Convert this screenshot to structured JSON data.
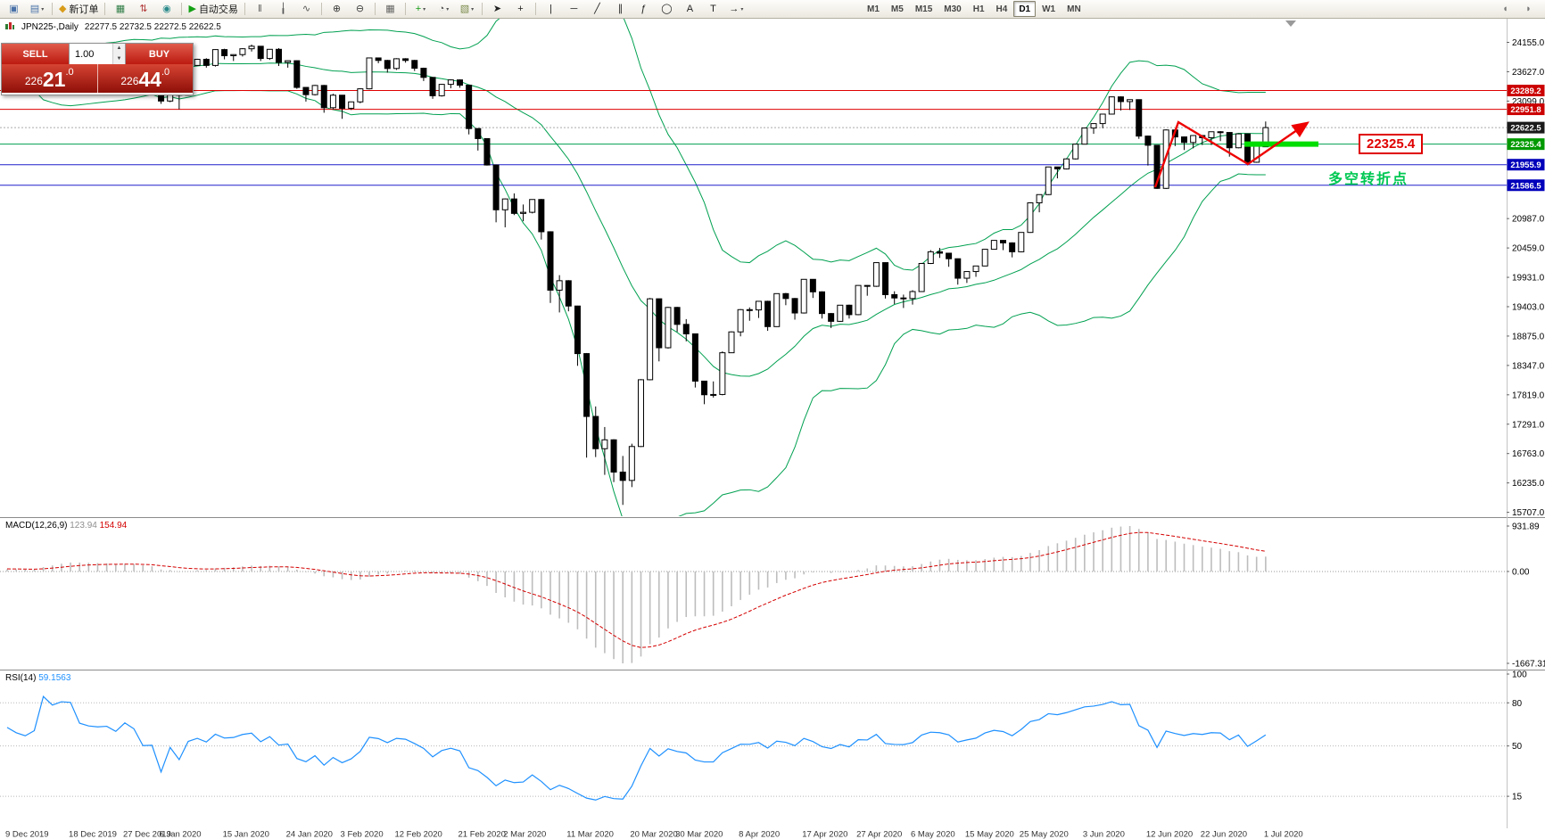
{
  "toolbar": {
    "items": [
      {
        "name": "new-chart-icon",
        "glyph": "▣",
        "color": "#4a72a8"
      },
      {
        "name": "chart-profiles-icon",
        "glyph": "▤",
        "color": "#4a72a8",
        "caret": true
      },
      {
        "type": "sep"
      },
      {
        "name": "new-order-button",
        "glyph": "◆",
        "color": "#d89c1a",
        "label": "新订单"
      },
      {
        "type": "sep"
      },
      {
        "name": "market-watch-icon",
        "glyph": "▦",
        "color": "#2f7d46"
      },
      {
        "name": "data-history-icon",
        "glyph": "⇅",
        "color": "#b23a3a"
      },
      {
        "name": "alerts-icon",
        "glyph": "◉",
        "color": "#2a8a8a"
      },
      {
        "type": "sep"
      },
      {
        "name": "autotrading-button",
        "glyph": "▶",
        "color": "#14a014",
        "label": "自动交易"
      },
      {
        "type": "sep"
      },
      {
        "name": "bar-chart-icon",
        "glyph": "ǁ",
        "color": "#555555"
      },
      {
        "name": "candlestick-chart-icon",
        "glyph": "╽",
        "color": "#555555"
      },
      {
        "name": "line-chart-icon",
        "glyph": "∿",
        "color": "#555555"
      },
      {
        "type": "sep"
      },
      {
        "name": "zoom-in-icon",
        "glyph": "⊕",
        "color": "#3a3a3a"
      },
      {
        "name": "zoom-out-icon",
        "glyph": "⊖",
        "color": "#3a3a3a"
      },
      {
        "type": "sep"
      },
      {
        "name": "tile-windows-icon",
        "glyph": "▦",
        "color": "#666666"
      },
      {
        "type": "sep"
      },
      {
        "name": "indicators-icon",
        "glyph": "+",
        "color": "#149c14",
        "caret": true
      },
      {
        "name": "periods-icon",
        "glyph": "◔",
        "color": "#555555",
        "caret": true
      },
      {
        "name": "templates-icon",
        "glyph": "▧",
        "color": "#7a8a4a",
        "caret": true
      },
      {
        "type": "sep"
      },
      {
        "name": "cursor-icon",
        "glyph": "➤",
        "color": "#222222"
      },
      {
        "name": "crosshair-icon",
        "glyph": "+",
        "color": "#222222"
      },
      {
        "type": "sep"
      },
      {
        "name": "vertical-line-icon",
        "glyph": "|",
        "color": "#222222"
      },
      {
        "name": "horizontal-line-icon",
        "glyph": "─",
        "color": "#222222"
      },
      {
        "name": "trendline-icon",
        "glyph": "╱",
        "color": "#222222"
      },
      {
        "name": "channel-icon",
        "glyph": "∥",
        "color": "#222222"
      },
      {
        "name": "fibonacci-icon",
        "glyph": "ƒ",
        "color": "#222222"
      },
      {
        "name": "shapes-icon",
        "glyph": "◯",
        "color": "#222222"
      },
      {
        "name": "text-icon",
        "glyph": "A",
        "color": "#222222"
      },
      {
        "name": "label-icon",
        "glyph": "T",
        "color": "#222222"
      },
      {
        "name": "arrows-icon",
        "glyph": "→",
        "color": "#222222",
        "caret": true
      }
    ],
    "right_items": [
      {
        "name": "toolbar-overflow-left-icon",
        "glyph": "◖",
        "color": "#777777"
      },
      {
        "name": "toolbar-overflow-right-icon",
        "glyph": "◗",
        "color": "#777777"
      }
    ],
    "timeframes": [
      "M1",
      "M5",
      "M15",
      "M30",
      "H1",
      "H4",
      "D1",
      "W1",
      "MN"
    ],
    "active_timeframe": "D1"
  },
  "quote_panel": {
    "sell_label": "SELL",
    "buy_label": "BUY",
    "volume": "1.00",
    "sell_price": "22621.0",
    "buy_price": "22644.0",
    "sell_prefix": "226",
    "sell_big": "21",
    "sell_suffix": ".0",
    "buy_prefix": "226",
    "buy_big": "44",
    "buy_suffix": ".0"
  },
  "chart_header": {
    "symbol_period": "JPN225-,Daily",
    "ohlc": "22277.5 22732.5 22272.5 22622.5"
  },
  "chart_data": {
    "type": "candlestick",
    "symbol": "JPN225-",
    "period": "Daily",
    "current_ohlc": {
      "open": 22277.5,
      "high": 22732.5,
      "low": 22272.5,
      "close": 22622.5
    },
    "y_axis_ticks": [
      24155,
      23627,
      23099,
      20987,
      20459,
      19931,
      19403,
      18875,
      18347,
      17819,
      17291,
      16763,
      16235,
      15707
    ],
    "x_labels": [
      {
        "text": "9 Dec 2019",
        "i": 0
      },
      {
        "text": "18 Dec 2019",
        "i": 7
      },
      {
        "text": "27 Dec 2019",
        "i": 13
      },
      {
        "text": "6 Jan 2020",
        "i": 17
      },
      {
        "text": "15 Jan 2020",
        "i": 24
      },
      {
        "text": "24 Jan 2020",
        "i": 31
      },
      {
        "text": "3 Feb 2020",
        "i": 37
      },
      {
        "text": "12 Feb 2020",
        "i": 43
      },
      {
        "text": "21 Feb 2020",
        "i": 50
      },
      {
        "text": "2 Mar 2020",
        "i": 55
      },
      {
        "text": "11 Mar 2020",
        "i": 62
      },
      {
        "text": "20 Mar 2020",
        "i": 69
      },
      {
        "text": "30 Mar 2020",
        "i": 74
      },
      {
        "text": "8 Apr 2020",
        "i": 81
      },
      {
        "text": "17 Apr 2020",
        "i": 88
      },
      {
        "text": "27 Apr 2020",
        "i": 94
      },
      {
        "text": "6 May 2020",
        "i": 100
      },
      {
        "text": "15 May 2020",
        "i": 106
      },
      {
        "text": "25 May 2020",
        "i": 112
      },
      {
        "text": "3 Jun 2020",
        "i": 119
      },
      {
        "text": "12 Jun 2020",
        "i": 126
      },
      {
        "text": "22 Jun 2020",
        "i": 132
      },
      {
        "text": "1 Jul 2020",
        "i": 139
      }
    ],
    "price_lines": [
      {
        "price": 23289.2,
        "label": "23289.2",
        "color": "#e00000",
        "tag": "#cc0000"
      },
      {
        "price": 22951.8,
        "label": "22951.8",
        "color": "#e00000",
        "tag": "#cc0000"
      },
      {
        "price": 22622.5,
        "label": "22622.5",
        "style": "bid",
        "tag": "#1a1a1a"
      },
      {
        "price": 22325.4,
        "label": "22325.4",
        "color": "#00a050",
        "tag": "#009900"
      },
      {
        "price": 21955.9,
        "label": "21955.9",
        "color": "#2020cc",
        "tag": "#0000bb"
      },
      {
        "price": 21586.5,
        "label": "21586.5",
        "color": "#2020cc",
        "tag": "#0000bb"
      }
    ],
    "highlight_segment": {
      "price": 22325.4,
      "color": "#00dd00"
    },
    "warmup_closes": [
      22900,
      22940,
      22980,
      23020,
      23070,
      23110,
      23160,
      23210,
      23260,
      23300,
      23250,
      23290,
      23330,
      23400,
      23470,
      23430,
      23380,
      23320,
      23340,
      23370,
      23400,
      23440,
      23480,
      23440,
      23400,
      23360,
      23310,
      23270,
      23310,
      23350,
      23380,
      23420,
      23450,
      23430,
      23400,
      23380,
      23360,
      23380,
      23400,
      23420
    ],
    "candles": [
      [
        23410,
        23460,
        23360,
        23430
      ],
      [
        23430,
        23450,
        23350,
        23405
      ],
      [
        23405,
        23440,
        23330,
        23390
      ],
      [
        23390,
        23480,
        23370,
        23425
      ],
      [
        23425,
        24050,
        23420,
        24020
      ],
      [
        24020,
        24070,
        23900,
        23950
      ],
      [
        23950,
        24090,
        23930,
        24060
      ],
      [
        24060,
        24090,
        23980,
        24055
      ],
      [
        24055,
        24080,
        23840,
        23860
      ],
      [
        23860,
        23900,
        23790,
        23830
      ],
      [
        23830,
        23870,
        23780,
        23820
      ],
      [
        23820,
        23860,
        23790,
        23830
      ],
      [
        23830,
        23850,
        23740,
        23780
      ],
      [
        23780,
        23940,
        23760,
        23925
      ],
      [
        23925,
        23950,
        23830,
        23865
      ],
      [
        23865,
        23900,
        23620,
        23655
      ],
      [
        23655,
        23700,
        23570,
        23660
      ],
      [
        23660,
        23670,
        23050,
        23100
      ],
      [
        23100,
        23620,
        23080,
        23575
      ],
      [
        23400,
        23420,
        22952,
        23205
      ],
      [
        23205,
        23745,
        23200,
        23740
      ],
      [
        23740,
        23860,
        23730,
        23850
      ],
      [
        23850,
        23870,
        23700,
        23740
      ],
      [
        23740,
        24030,
        23720,
        24025
      ],
      [
        24025,
        24040,
        23850,
        23915
      ],
      [
        23915,
        23940,
        23820,
        23935
      ],
      [
        23935,
        24050,
        23900,
        24040
      ],
      [
        24040,
        24115,
        23990,
        24085
      ],
      [
        24085,
        24090,
        23820,
        23865
      ],
      [
        23865,
        24035,
        23840,
        24030
      ],
      [
        24030,
        24050,
        23730,
        23795
      ],
      [
        23795,
        23830,
        23700,
        23825
      ],
      [
        23825,
        23830,
        23320,
        23345
      ],
      [
        23345,
        23350,
        23090,
        23215
      ],
      [
        23215,
        23390,
        23200,
        23380
      ],
      [
        23380,
        23390,
        22890,
        22980
      ],
      [
        22980,
        23230,
        22950,
        23205
      ],
      [
        23205,
        23210,
        22780,
        22970
      ],
      [
        22970,
        23090,
        22940,
        23085
      ],
      [
        23085,
        23330,
        23060,
        23320
      ],
      [
        23320,
        23880,
        23310,
        23875
      ],
      [
        23875,
        23880,
        23780,
        23830
      ],
      [
        23830,
        23840,
        23610,
        23685
      ],
      [
        23685,
        23870,
        23660,
        23860
      ],
      [
        23860,
        23870,
        23790,
        23830
      ],
      [
        23830,
        23840,
        23640,
        23690
      ],
      [
        23690,
        23700,
        23460,
        23525
      ],
      [
        23525,
        23530,
        23140,
        23195
      ],
      [
        23195,
        23410,
        23180,
        23400
      ],
      [
        23400,
        23490,
        23330,
        23480
      ],
      [
        23480,
        23490,
        23340,
        23385
      ],
      [
        23385,
        23390,
        22500,
        22605
      ],
      [
        22605,
        22610,
        22210,
        22425
      ],
      [
        22425,
        22430,
        21940,
        21950
      ],
      [
        21950,
        21960,
        20920,
        21145
      ],
      [
        21145,
        21350,
        20830,
        21340
      ],
      [
        21340,
        21440,
        21050,
        21080
      ],
      [
        21080,
        21240,
        20940,
        21100
      ],
      [
        21100,
        21330,
        21080,
        21330
      ],
      [
        21330,
        21340,
        20610,
        20750
      ],
      [
        20750,
        20760,
        19470,
        19700
      ],
      [
        19700,
        19970,
        19300,
        19870
      ],
      [
        19870,
        19880,
        19320,
        19415
      ],
      [
        19415,
        19420,
        18340,
        18560
      ],
      [
        18560,
        18570,
        16690,
        17430
      ],
      [
        17430,
        17610,
        16700,
        16850
      ],
      [
        16850,
        17240,
        16380,
        17010
      ],
      [
        17010,
        17020,
        16250,
        16430
      ],
      [
        16430,
        16720,
        15840,
        16280
      ],
      [
        16280,
        16940,
        16160,
        16890
      ],
      [
        16890,
        18100,
        16880,
        18090
      ],
      [
        18090,
        19560,
        18080,
        19545
      ],
      [
        19545,
        19550,
        18420,
        18665
      ],
      [
        18665,
        19400,
        18650,
        19390
      ],
      [
        19390,
        19400,
        18950,
        19085
      ],
      [
        19085,
        19180,
        18780,
        18915
      ],
      [
        18915,
        18920,
        17950,
        18065
      ],
      [
        18065,
        18070,
        17650,
        17820
      ],
      [
        17820,
        18060,
        17770,
        17825
      ],
      [
        17825,
        18600,
        17810,
        18575
      ],
      [
        18575,
        18960,
        18570,
        18950
      ],
      [
        18950,
        19360,
        18870,
        19350
      ],
      [
        19350,
        19390,
        19150,
        19345
      ],
      [
        19345,
        19500,
        19200,
        19500
      ],
      [
        19500,
        19510,
        18970,
        19045
      ],
      [
        19045,
        19640,
        19040,
        19638
      ],
      [
        19638,
        19650,
        19430,
        19550
      ],
      [
        19550,
        19560,
        19170,
        19290
      ],
      [
        19290,
        19900,
        19280,
        19895
      ],
      [
        19895,
        19900,
        19560,
        19670
      ],
      [
        19670,
        19680,
        19190,
        19280
      ],
      [
        19280,
        19290,
        19020,
        19140
      ],
      [
        19140,
        19430,
        19130,
        19430
      ],
      [
        19430,
        19440,
        19190,
        19260
      ],
      [
        19260,
        19790,
        19250,
        19785
      ],
      [
        19785,
        19790,
        19600,
        19770
      ],
      [
        19770,
        20200,
        19760,
        20195
      ],
      [
        20195,
        20200,
        19550,
        19620
      ],
      [
        19620,
        19680,
        19450,
        19560
      ],
      [
        19560,
        19620,
        19380,
        19550
      ],
      [
        19550,
        19700,
        19440,
        19675
      ],
      [
        19675,
        20190,
        19670,
        20180
      ],
      [
        20180,
        20420,
        20170,
        20390
      ],
      [
        20390,
        20460,
        20280,
        20365
      ],
      [
        20365,
        20370,
        20120,
        20265
      ],
      [
        20265,
        20270,
        19800,
        19915
      ],
      [
        19915,
        20040,
        19830,
        20035
      ],
      [
        20035,
        20140,
        19940,
        20135
      ],
      [
        20135,
        20440,
        20130,
        20435
      ],
      [
        20435,
        20600,
        20430,
        20595
      ],
      [
        20595,
        20600,
        20420,
        20550
      ],
      [
        20550,
        20560,
        20290,
        20390
      ],
      [
        20390,
        20740,
        20380,
        20738
      ],
      [
        20738,
        21280,
        20730,
        21270
      ],
      [
        21270,
        21420,
        21100,
        21418
      ],
      [
        21418,
        21920,
        21410,
        21915
      ],
      [
        21915,
        21920,
        21710,
        21880
      ],
      [
        21880,
        22070,
        21870,
        22060
      ],
      [
        22060,
        22330,
        22050,
        22325
      ],
      [
        22325,
        22620,
        22320,
        22615
      ],
      [
        22615,
        22700,
        22510,
        22695
      ],
      [
        22695,
        22870,
        22610,
        22865
      ],
      [
        22865,
        23180,
        22860,
        23175
      ],
      [
        23175,
        23185,
        22930,
        23090
      ],
      [
        23090,
        23130,
        22940,
        23125
      ],
      [
        23125,
        23130,
        22420,
        22470
      ],
      [
        22470,
        22480,
        21940,
        22305
      ],
      [
        22305,
        22310,
        21520,
        21530
      ],
      [
        21530,
        22590,
        21520,
        22580
      ],
      [
        22580,
        22590,
        22290,
        22455
      ],
      [
        22455,
        22460,
        22220,
        22355
      ],
      [
        22355,
        22480,
        22250,
        22480
      ],
      [
        22480,
        22490,
        22310,
        22440
      ],
      [
        22440,
        22550,
        22310,
        22548
      ],
      [
        22548,
        22560,
        22380,
        22535
      ],
      [
        22535,
        22540,
        22100,
        22260
      ],
      [
        22260,
        22520,
        22250,
        22510
      ],
      [
        22510,
        22515,
        21945,
        22000
      ],
      [
        22000,
        22295,
        21990,
        22290
      ],
      [
        22277.5,
        22732.5,
        22272.5,
        22622.5
      ]
    ],
    "indicators": {
      "bollinger": {
        "period": 20,
        "deviation": 2,
        "color": "#00a050"
      },
      "macd": {
        "label": "MACD(12,26,9)",
        "main": "123.94",
        "signal": "154.94",
        "axis_max": "931.89",
        "axis_zero": "0.00",
        "axis_min": "-1667.31",
        "hist_color": "#bdbdbd",
        "signal_color": "#d40000"
      },
      "rsi": {
        "label": "RSI(14)",
        "value": "59.1563",
        "levels": [
          100,
          80,
          50,
          15
        ],
        "level_lines": [
          80,
          50,
          15
        ],
        "color": "#1e90ff"
      }
    },
    "annotations": {
      "price_tag": "22325.4",
      "note": "多空转折点",
      "note_color": "#00c853",
      "arrow_color": "#ee0000"
    }
  }
}
